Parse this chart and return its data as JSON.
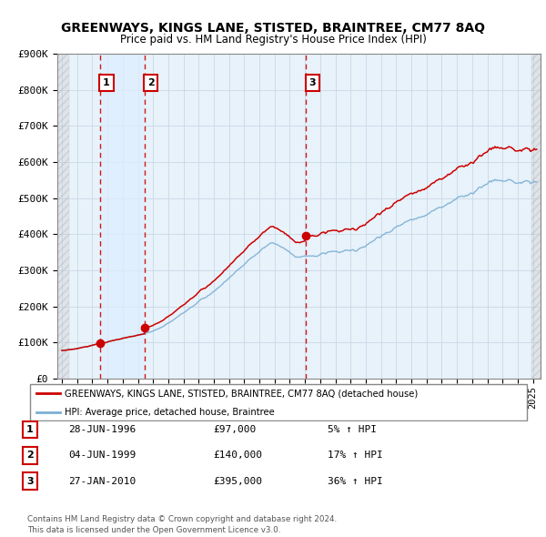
{
  "title": "GREENWAYS, KINGS LANE, STISTED, BRAINTREE, CM77 8AQ",
  "subtitle": "Price paid vs. HM Land Registry's House Price Index (HPI)",
  "ylabel_values": [
    "£0",
    "£100K",
    "£200K",
    "£300K",
    "£400K",
    "£500K",
    "£600K",
    "£700K",
    "£800K",
    "£900K"
  ],
  "yticks": [
    0,
    100000,
    200000,
    300000,
    400000,
    500000,
    600000,
    700000,
    800000,
    900000
  ],
  "xlim_start": 1993.7,
  "xlim_end": 2025.5,
  "ylim_top": 900000,
  "ylim_bottom": 0,
  "sale_dates": [
    1996.49,
    1999.42,
    2010.07
  ],
  "sale_prices": [
    97000,
    140000,
    395000
  ],
  "sale_labels": [
    "1",
    "2",
    "3"
  ],
  "hpi_color": "#7bafd4",
  "price_color": "#cc0000",
  "dashed_color": "#cc0000",
  "highlight_band_color": "#ddeeff",
  "legend_entries": [
    "GREENWAYS, KINGS LANE, STISTED, BRAINTREE, CM77 8AQ (detached house)",
    "HPI: Average price, detached house, Braintree"
  ],
  "table_data": [
    [
      "1",
      "28-JUN-1996",
      "£97,000",
      "5% ↑ HPI"
    ],
    [
      "2",
      "04-JUN-1999",
      "£140,000",
      "17% ↑ HPI"
    ],
    [
      "3",
      "27-JAN-2010",
      "£395,000",
      "36% ↑ HPI"
    ]
  ],
  "footnote": "Contains HM Land Registry data © Crown copyright and database right 2024.\nThis data is licensed under the Open Government Licence v3.0.",
  "grid_color": "#c8d8e8",
  "background_plot": "#e8f2fa"
}
